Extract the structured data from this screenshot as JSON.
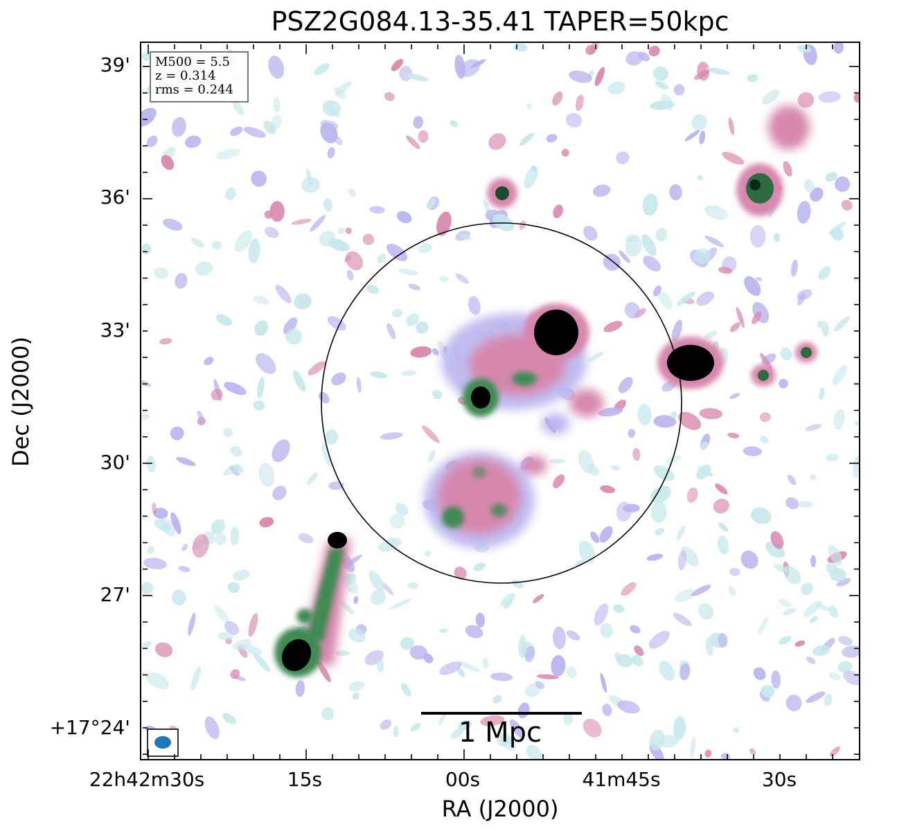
{
  "title": "PSZ2G084.13-35.41 TAPER=50kpc",
  "info_box": [
    "M500 = 5.5",
    "z = 0.314",
    "rms = 0.244"
  ],
  "axes": {
    "x_label": "RA (J2000)",
    "y_label": "Dec (J2000)",
    "x_ticks": [
      "22h42m30s",
      "15s",
      "00s",
      "41m45s",
      "30s"
    ],
    "y_ticks": [
      "39'",
      "36'",
      "33'",
      "30'",
      "27'",
      "+17°24'"
    ]
  },
  "scale_bar": {
    "label": "1 Mpc"
  },
  "colors": {
    "faint": "#c6e8ec",
    "low": "#b9b4ee",
    "mid": "#d787ad",
    "high": "#3f8a52",
    "peak": "#000000",
    "beam": "#1f77b4"
  }
}
